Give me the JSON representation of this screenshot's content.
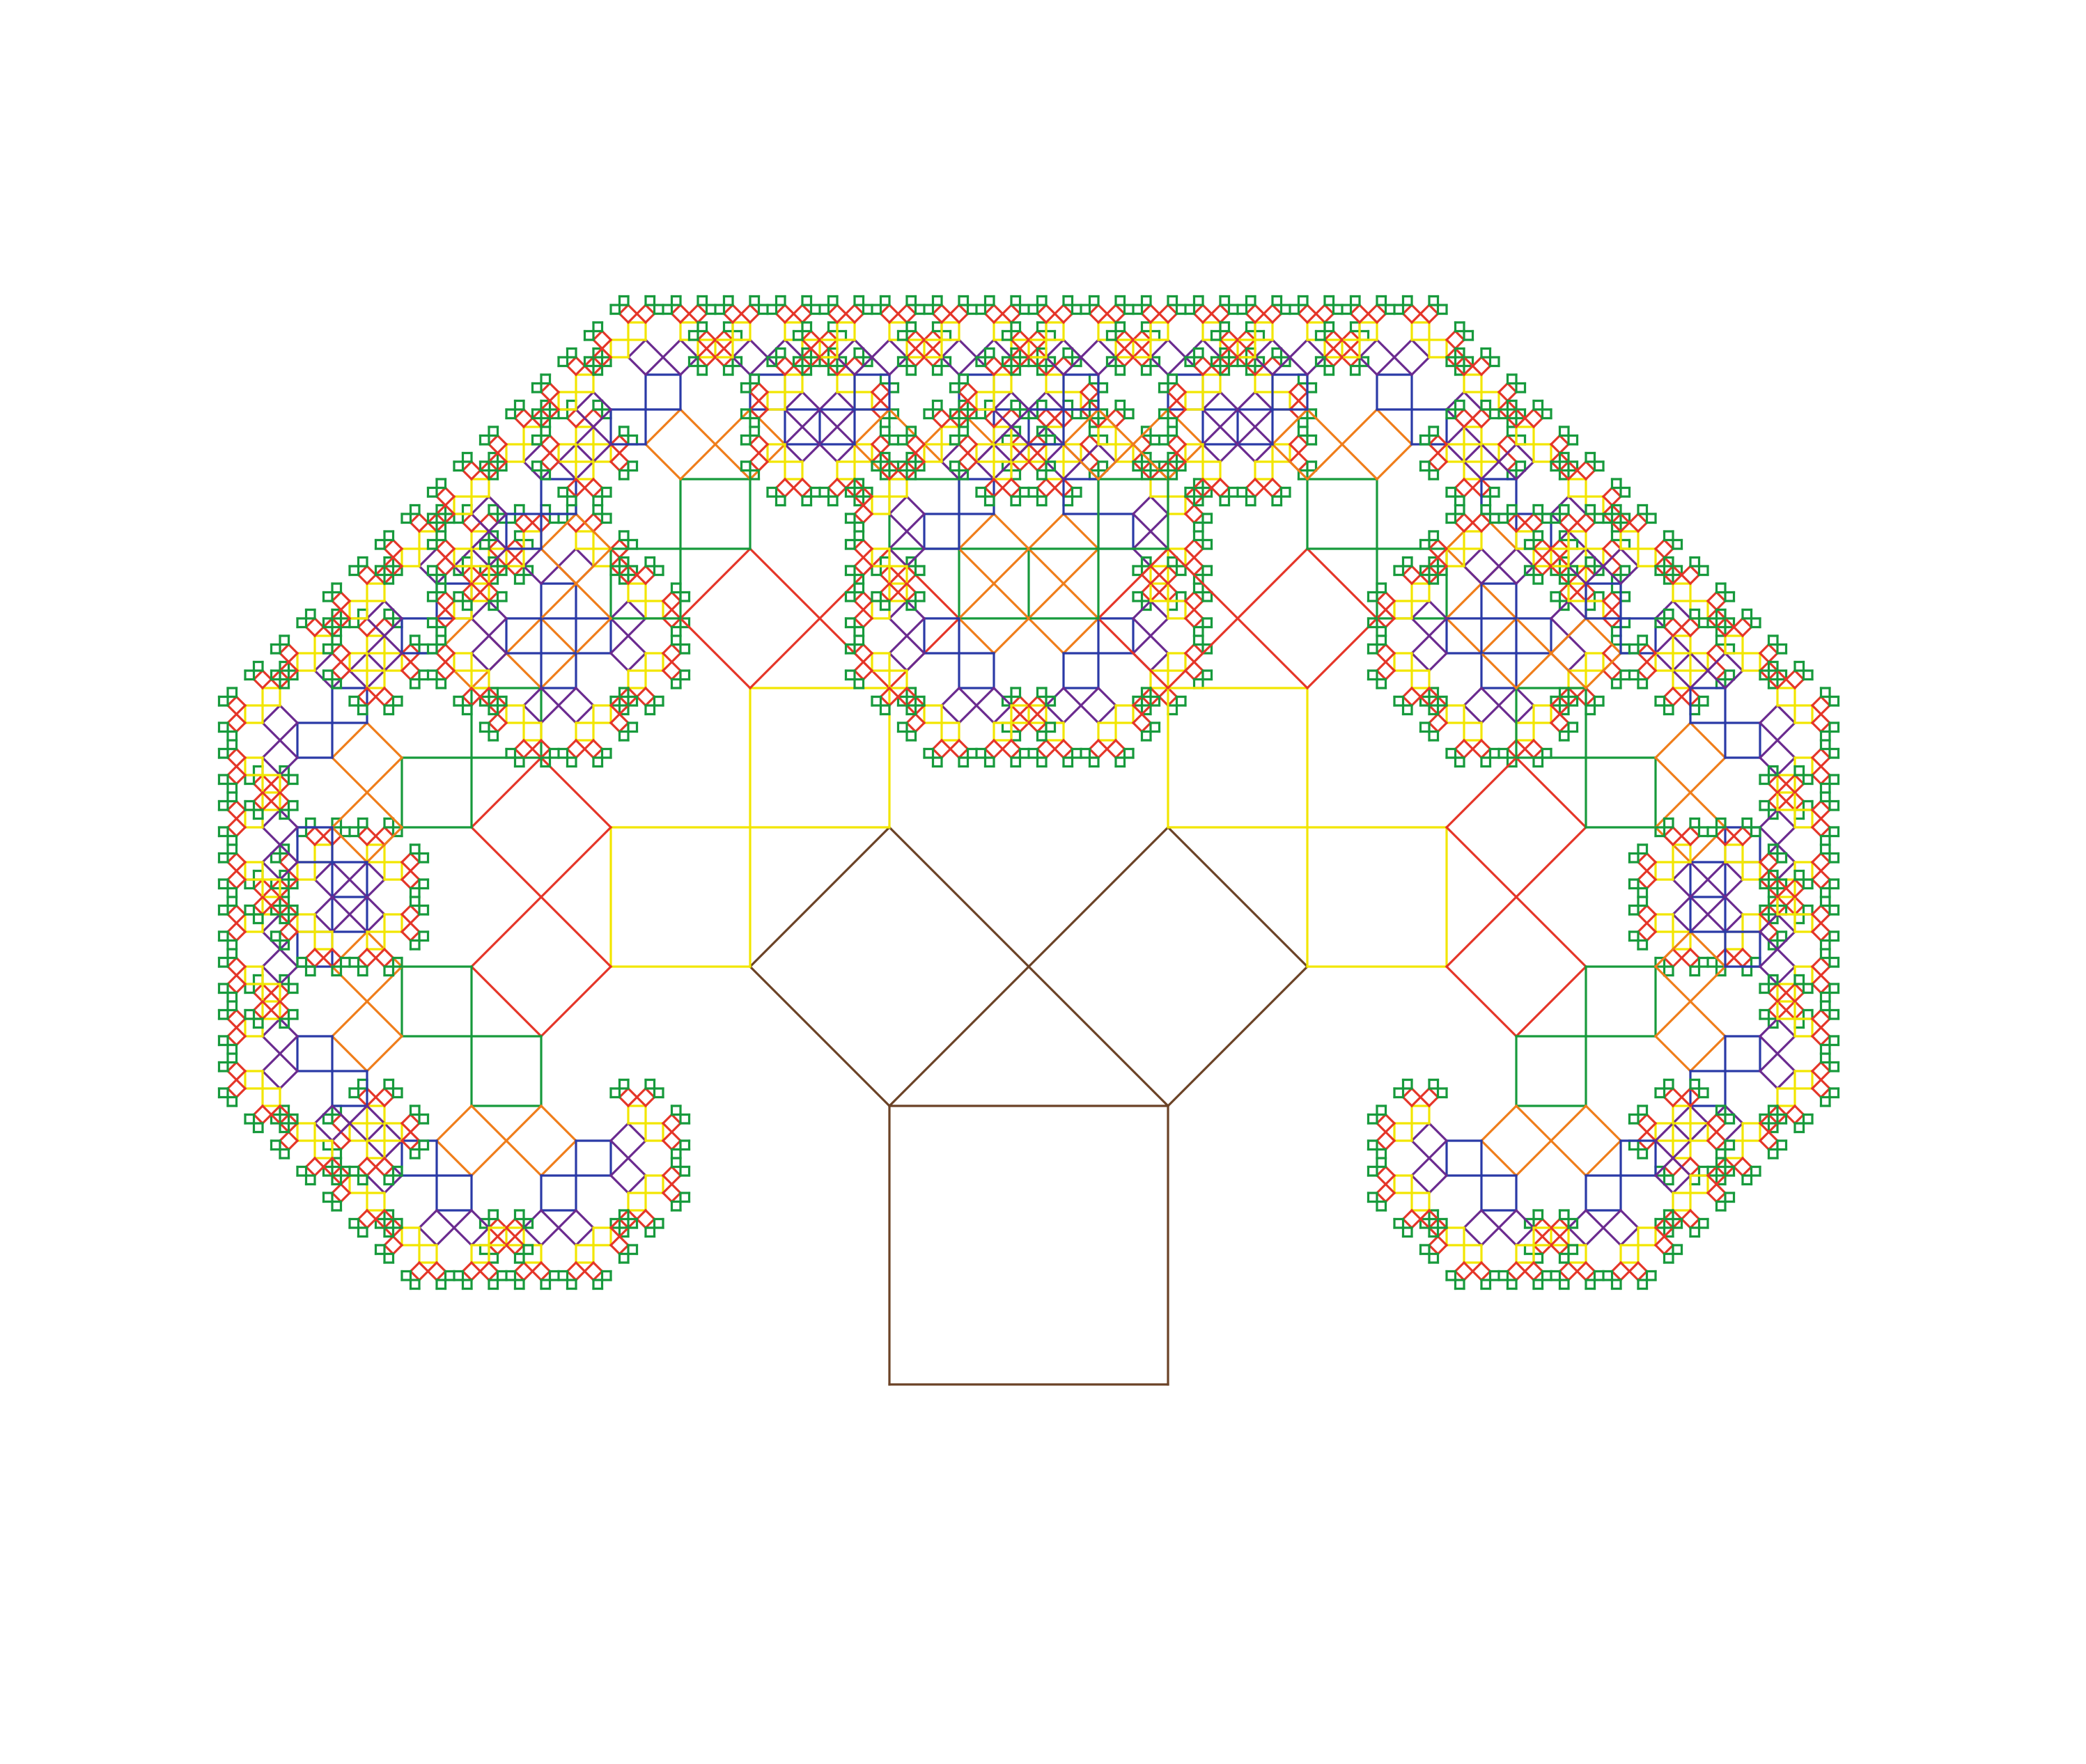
{
  "figure": {
    "kind": "pythagoras-tree-fractal",
    "recursion_depth": 10,
    "branch_angle_degrees": 45,
    "background_color": "#ffffff",
    "level_colors": [
      "#6b4226",
      "#6b4226",
      "#f2e600",
      "#e53528",
      "#179a3c",
      "#ef7d1a",
      "#2a3aa6",
      "#6a2a8f",
      "#f2e600",
      "#e53528",
      "#179a3c"
    ]
  }
}
